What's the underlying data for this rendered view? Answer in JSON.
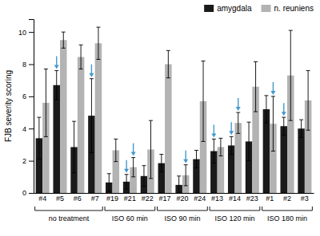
{
  "chart_data": {
    "type": "bar",
    "y_label": "FJB severity scoring",
    "categories": [
      "#4",
      "#5",
      "#6",
      "#7",
      "#19",
      "#21",
      "#22",
      "#17",
      "#20",
      "#24",
      "#13",
      "#14",
      "#23",
      "#1",
      "#2",
      "#3"
    ],
    "groups": [
      {
        "name": "no treatment",
        "categories": [
          "#4",
          "#5",
          "#6",
          "#7"
        ]
      },
      {
        "name": "ISO 60 min",
        "categories": [
          "#19",
          "#21",
          "#22"
        ]
      },
      {
        "name": "ISO 90 min",
        "categories": [
          "#17",
          "#20",
          "#24"
        ]
      },
      {
        "name": "ISO 120 min",
        "categories": [
          "#13",
          "#14",
          "#23"
        ]
      },
      {
        "name": "ISO 180 min",
        "categories": [
          "#1",
          "#2",
          "#3"
        ]
      }
    ],
    "series": [
      {
        "name": "amygdala",
        "color": "#1a1a1a",
        "values": [
          3.4,
          6.7,
          2.85,
          4.8,
          0.65,
          0.7,
          1.05,
          1.85,
          0.5,
          2.1,
          2.6,
          2.95,
          3.2,
          5.2,
          4.15,
          4.0
        ],
        "errors": [
          1.3,
          0.9,
          1.6,
          2.3,
          0.55,
          0.45,
          0.65,
          0.55,
          0.55,
          0.55,
          0.75,
          0.55,
          1.2,
          0.85,
          0.55,
          0.55
        ]
      },
      {
        "name": "n. reuniens",
        "color": "#b3b3b3",
        "values": [
          5.6,
          9.5,
          8.45,
          9.3,
          2.65,
          1.6,
          2.7,
          8.0,
          1.1,
          5.7,
          2.85,
          4.35,
          6.6,
          4.3,
          7.3,
          5.75
        ],
        "errors": [
          2.1,
          0.5,
          0.75,
          1.0,
          0.7,
          0.6,
          1.8,
          0.85,
          0.65,
          2.5,
          0.55,
          0.65,
          1.55,
          1.7,
          2.8,
          1.85
        ]
      }
    ],
    "annotations": [
      {
        "type": "arrow",
        "series": "amygdala",
        "category": "#5",
        "color": "#4499cc"
      },
      {
        "type": "arrow",
        "series": "amygdala",
        "category": "#7",
        "color": "#4499cc"
      },
      {
        "type": "arrow",
        "series": "amygdala",
        "category": "#21",
        "color": "#4499cc"
      },
      {
        "type": "arrow",
        "series": "amygdala",
        "category": "#13",
        "color": "#4499cc"
      },
      {
        "type": "arrow",
        "series": "amygdala",
        "category": "#14",
        "color": "#4499cc"
      },
      {
        "type": "arrow",
        "series": "amygdala",
        "category": "#2",
        "color": "#4499cc"
      },
      {
        "type": "arrow",
        "series": "n. reuniens",
        "category": "#21",
        "color": "#4499cc"
      },
      {
        "type": "arrow",
        "series": "n. reuniens",
        "category": "#20",
        "color": "#4499cc"
      },
      {
        "type": "arrow",
        "series": "n. reuniens",
        "category": "#14",
        "color": "#4499cc"
      },
      {
        "type": "arrow",
        "series": "n. reuniens",
        "category": "#1",
        "color": "#4499cc"
      }
    ],
    "ylim": [
      0,
      10.8
    ],
    "yticks": [
      0,
      2,
      4,
      6,
      8,
      10
    ],
    "grid": false,
    "legend": "upper right"
  }
}
